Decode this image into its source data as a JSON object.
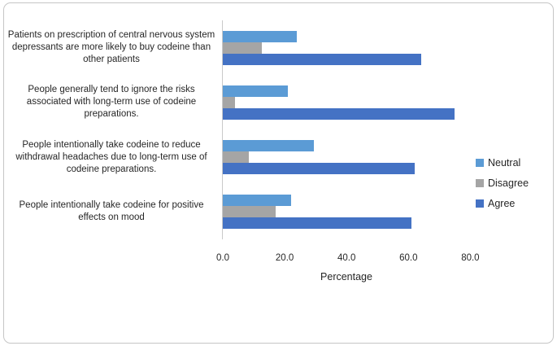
{
  "chart_data": {
    "type": "bar",
    "orientation": "horizontal",
    "title": "",
    "xlabel": "Percentage",
    "ylabel": "",
    "xlim": [
      0,
      80
    ],
    "xticks": [
      0,
      20,
      40,
      60,
      80
    ],
    "xtick_labels": [
      "0.0",
      "20.0",
      "40.0",
      "60.0",
      "80.0"
    ],
    "grid": false,
    "legend_position": "right",
    "categories": [
      "Patients on prescription of central nervous system depressants are more likely to buy codeine than other patients",
      "People generally tend to ignore the risks associated with long-term use of codeine preparations.",
      "People intentionally take codeine to reduce withdrawal headaches due to long-term use of codeine preparations.",
      "People intentionally take codeine for positive effects on mood"
    ],
    "series": [
      {
        "name": "Neutral",
        "color": "#5B9BD5",
        "values": [
          24.0,
          21.0,
          29.5,
          22.0
        ]
      },
      {
        "name": "Disagree",
        "color": "#A5A5A5",
        "values": [
          12.5,
          4.0,
          8.5,
          17.0
        ]
      },
      {
        "name": "Agree",
        "color": "#4472C4",
        "values": [
          64.0,
          75.0,
          62.0,
          61.0
        ]
      }
    ]
  },
  "colors": {
    "frame_border": "#c6c6c6",
    "axis_line": "#c9c9c9",
    "text": "#262626"
  }
}
